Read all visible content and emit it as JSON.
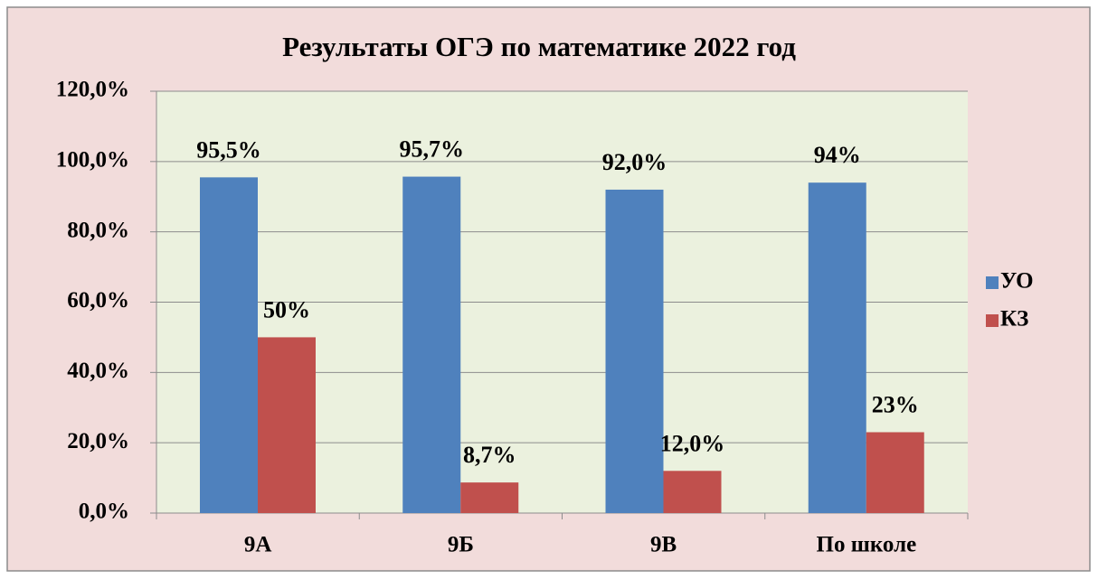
{
  "chart_data": {
    "type": "bar",
    "title": "Результаты ОГЭ по математике 2022 год",
    "categories": [
      "9А",
      "9Б",
      "9В",
      "По школе"
    ],
    "series": [
      {
        "name": "УО",
        "color": "#4f81bd",
        "values": [
          95.5,
          95.7,
          92.0,
          94
        ],
        "value_labels": [
          "95,5%",
          "95,7%",
          "92,0%",
          "94%"
        ]
      },
      {
        "name": "КЗ",
        "color": "#c0504d",
        "values": [
          50,
          8.7,
          12.0,
          23
        ],
        "value_labels": [
          "50%",
          "8,7%",
          "12,0%",
          "23%"
        ]
      }
    ],
    "ylim": [
      0,
      120
    ],
    "yticks": [
      {
        "value": 0,
        "label": "0,0%"
      },
      {
        "value": 20,
        "label": "20,0%"
      },
      {
        "value": 40,
        "label": "40,0%"
      },
      {
        "value": 60,
        "label": "60,0%"
      },
      {
        "value": 80,
        "label": "80,0%"
      },
      {
        "value": 100,
        "label": "100,0%"
      },
      {
        "value": 120,
        "label": "120,0%"
      }
    ],
    "grid": true,
    "legend": "right"
  }
}
